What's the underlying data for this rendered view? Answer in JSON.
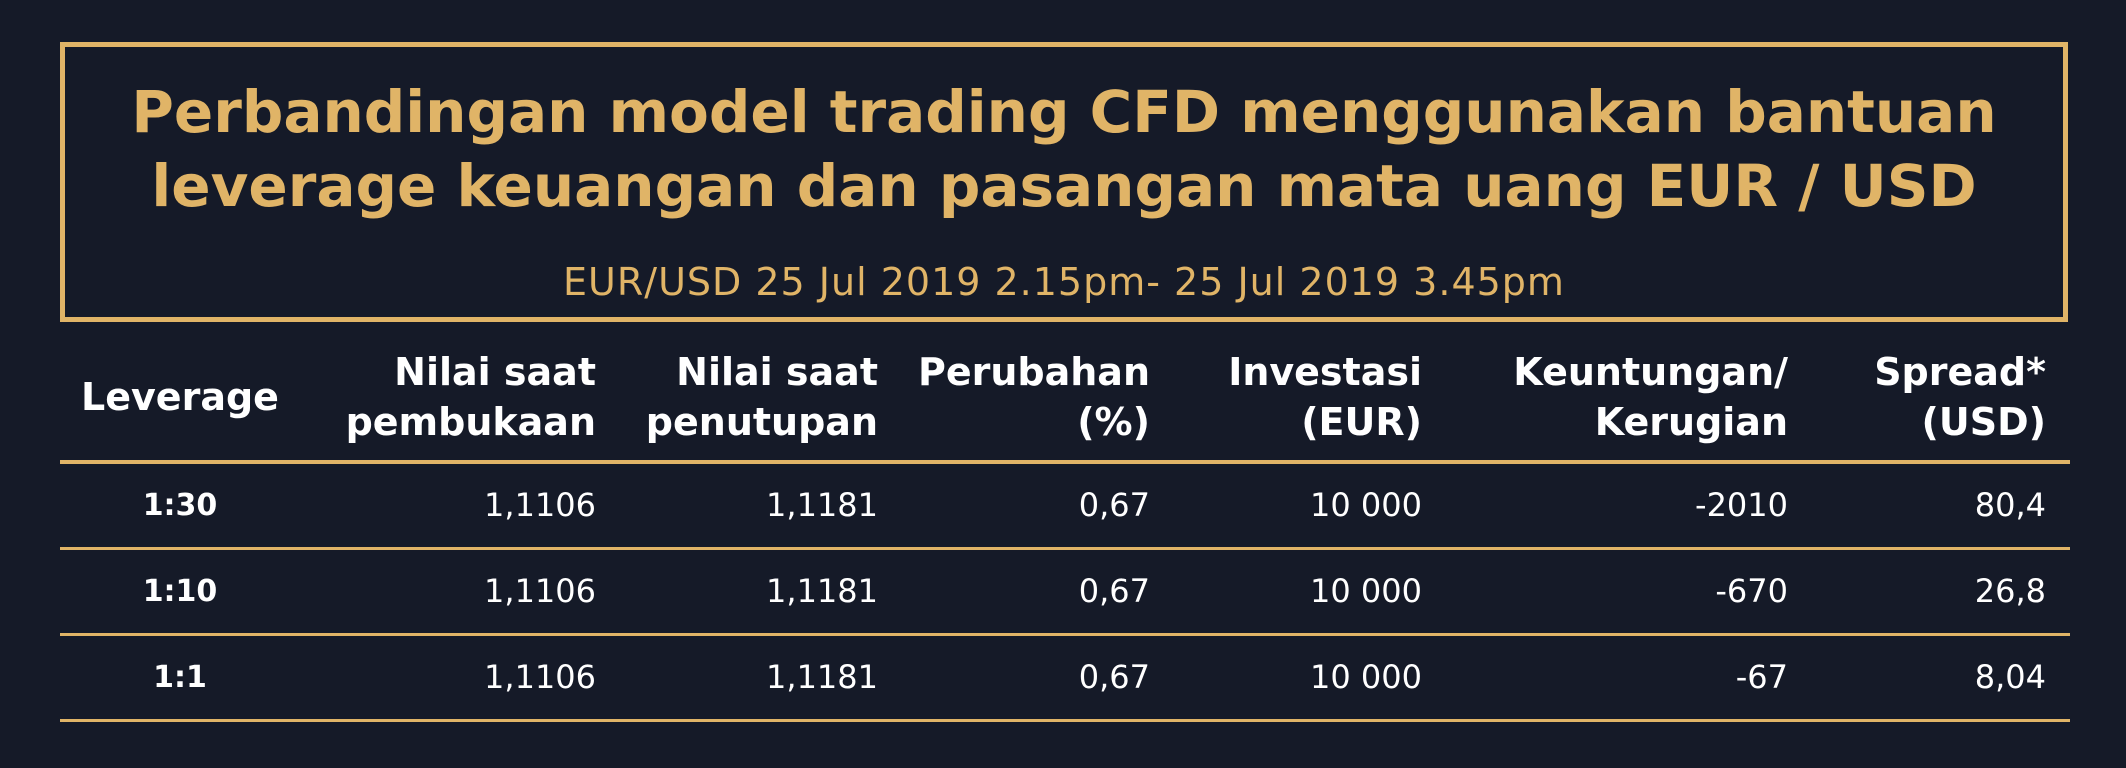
{
  "title": {
    "line1": "Perbandingan model trading CFD menggunakan bantuan",
    "line2": "leverage keuangan dan pasangan mata uang EUR / USD",
    "subtitle": "EUR/USD 25 Jul 2019 2.15pm- 25 Jul 2019 3.45pm"
  },
  "colors": {
    "background": "#151a28",
    "accent": "#e0b467",
    "text": "#ffffff"
  },
  "table": {
    "headers": [
      {
        "line1": "Leverage",
        "line2": ""
      },
      {
        "line1": "Nilai saat",
        "line2": "pembukaan"
      },
      {
        "line1": "Nilai saat",
        "line2": "penutupan"
      },
      {
        "line1": "Perubahan",
        "line2": "(%)"
      },
      {
        "line1": "Investasi",
        "line2": "(EUR)"
      },
      {
        "line1": "Keuntungan/",
        "line2": "Kerugian"
      },
      {
        "line1": "Spread*",
        "line2": "(USD)"
      }
    ],
    "rows": [
      [
        "1:30",
        "1,1106",
        "1,1181",
        "0,67",
        "10 000",
        "-2010",
        "80,4"
      ],
      [
        "1:10",
        "1,1106",
        "1,1181",
        "0,67",
        "10 000",
        "-670",
        "26,8"
      ],
      [
        "1:1",
        "1,1106",
        "1,1181",
        "0,67",
        "10 000",
        "-67",
        "8,04"
      ]
    ]
  }
}
